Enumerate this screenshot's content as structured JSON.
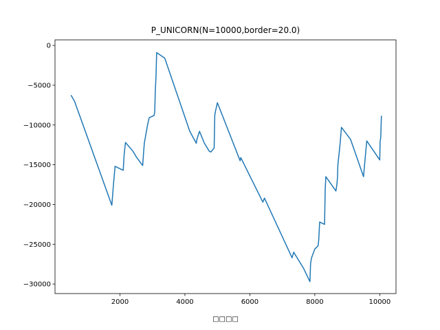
{
  "chart_data": {
    "type": "line",
    "title": "P_UNICORN(N=10000,border=20.0)",
    "xlabel": "□□□□",
    "ylabel": "",
    "xlim": [
      0,
      10500
    ],
    "ylim": [
      -31200,
      700
    ],
    "xticks": [
      2000,
      4000,
      6000,
      8000,
      10000
    ],
    "yticks": [
      0,
      -5000,
      -10000,
      -15000,
      -20000,
      -25000,
      -30000
    ],
    "grid": false,
    "legend": "none",
    "series": [
      {
        "color": "#1f77b4",
        "points": [
          [
            500,
            -6300
          ],
          [
            600,
            -7000
          ],
          [
            1750,
            -20100
          ],
          [
            1800,
            -17500
          ],
          [
            1850,
            -15200
          ],
          [
            2100,
            -15700
          ],
          [
            2130,
            -13700
          ],
          [
            2170,
            -12200
          ],
          [
            2400,
            -13300
          ],
          [
            2500,
            -14000
          ],
          [
            2700,
            -15100
          ],
          [
            2720,
            -13900
          ],
          [
            2750,
            -12300
          ],
          [
            2850,
            -10000
          ],
          [
            2900,
            -9100
          ],
          [
            3050,
            -8800
          ],
          [
            3070,
            -8400
          ],
          [
            3090,
            -5500
          ],
          [
            3110,
            -4000
          ],
          [
            3130,
            -900
          ],
          [
            3380,
            -1600
          ],
          [
            4150,
            -10800
          ],
          [
            4350,
            -12300
          ],
          [
            4370,
            -11800
          ],
          [
            4450,
            -10800
          ],
          [
            4600,
            -12300
          ],
          [
            4750,
            -13300
          ],
          [
            4800,
            -13400
          ],
          [
            4900,
            -12900
          ],
          [
            4920,
            -8800
          ],
          [
            4940,
            -8300
          ],
          [
            5000,
            -7200
          ],
          [
            5700,
            -14500
          ],
          [
            5720,
            -14100
          ],
          [
            6400,
            -19700
          ],
          [
            6450,
            -19200
          ],
          [
            7300,
            -26700
          ],
          [
            7350,
            -26000
          ],
          [
            7650,
            -28000
          ],
          [
            7850,
            -29700
          ],
          [
            7870,
            -27400
          ],
          [
            7900,
            -26700
          ],
          [
            8000,
            -25600
          ],
          [
            8100,
            -25200
          ],
          [
            8120,
            -24500
          ],
          [
            8150,
            -22200
          ],
          [
            8300,
            -22500
          ],
          [
            8320,
            -18100
          ],
          [
            8340,
            -16500
          ],
          [
            8650,
            -18300
          ],
          [
            8680,
            -17500
          ],
          [
            8700,
            -16500
          ],
          [
            8710,
            -15000
          ],
          [
            8750,
            -13500
          ],
          [
            8780,
            -12300
          ],
          [
            8820,
            -10300
          ],
          [
            8950,
            -11000
          ],
          [
            9100,
            -11800
          ],
          [
            9500,
            -16500
          ],
          [
            9550,
            -14200
          ],
          [
            9600,
            -12000
          ],
          [
            10000,
            -14400
          ],
          [
            10010,
            -12100
          ],
          [
            10030,
            -11600
          ],
          [
            10050,
            -8900
          ]
        ]
      }
    ]
  }
}
